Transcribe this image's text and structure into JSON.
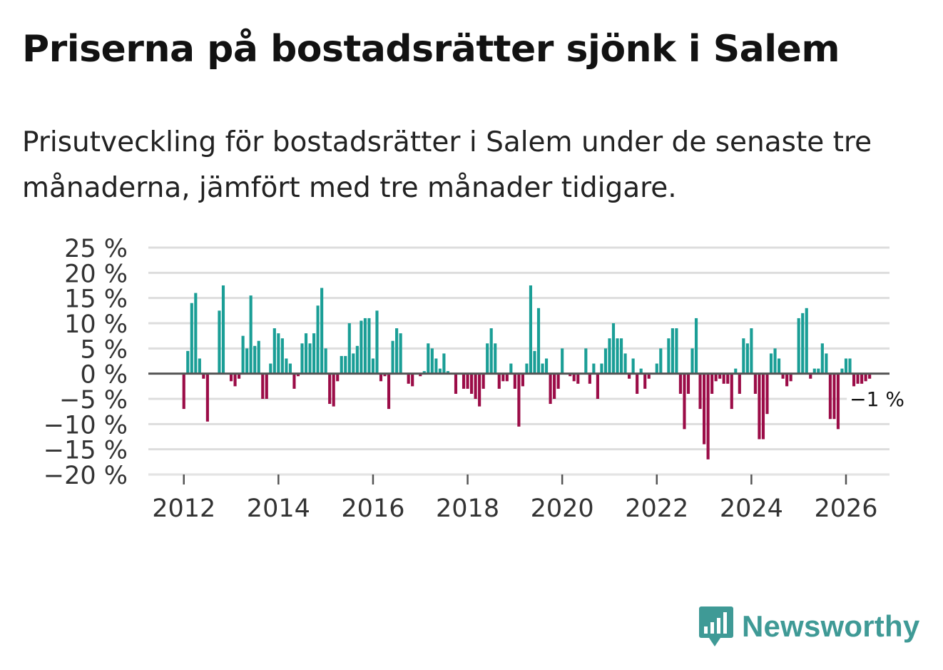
{
  "header": {
    "title": "Priserna på bostadsrätter sjönk i Salem",
    "subtitle": "Prisutveckling för bostadsrätter i Salem under de senaste tre månaderna, jämfört med tre månader tidigare."
  },
  "brand": {
    "name": "Newsworthy",
    "icon": "newsworthy-logo-icon",
    "color": "#3f9a96"
  },
  "colors": {
    "positive": "#1a9e96",
    "negative": "#9b0c47",
    "grid": "#dddddd",
    "zero_line": "#555555",
    "text": "#333333"
  },
  "chart_data": {
    "type": "bar",
    "title": "Priserna på bostadsrätter sjönk i Salem",
    "xlabel": "",
    "ylabel": "",
    "start": {
      "year": 2012,
      "month": 1
    },
    "ylim": [
      -20,
      25
    ],
    "xlim": [
      2011.25,
      2026.92
    ],
    "y_ticks": [
      {
        "value": 25,
        "label": "25 %"
      },
      {
        "value": 20,
        "label": "20 %"
      },
      {
        "value": 15,
        "label": "15 %"
      },
      {
        "value": 10,
        "label": "10 %"
      },
      {
        "value": 5,
        "label": "5 %"
      },
      {
        "value": 0,
        "label": "0 %"
      },
      {
        "value": -5,
        "label": "−5 %"
      },
      {
        "value": -10,
        "label": "−10 %"
      },
      {
        "value": -15,
        "label": "−15 %"
      },
      {
        "value": -20,
        "label": "−20 %"
      }
    ],
    "x_ticks": [
      {
        "value": 2012,
        "label": "2012"
      },
      {
        "value": 2014,
        "label": "2014"
      },
      {
        "value": 2016,
        "label": "2016"
      },
      {
        "value": 2018,
        "label": "2018"
      },
      {
        "value": 2020,
        "label": "2020"
      },
      {
        "value": 2022,
        "label": "2022"
      },
      {
        "value": 2024,
        "label": "2024"
      },
      {
        "value": 2026,
        "label": "2026"
      }
    ],
    "values": [
      -7,
      4.5,
      14,
      16,
      3,
      -1,
      -9.5,
      0,
      0,
      12.5,
      17.5,
      0,
      -1.5,
      -2.5,
      -1,
      7.5,
      5,
      15.5,
      5.5,
      6.5,
      -5,
      -5,
      2,
      9,
      8,
      7,
      3,
      2,
      -3,
      -0.5,
      6,
      8,
      6,
      8,
      13.5,
      17,
      5,
      -6,
      -6.5,
      -1.5,
      3.5,
      3.5,
      10,
      4,
      5.5,
      10.5,
      11,
      11,
      3,
      12.5,
      -1.5,
      -0.5,
      -7,
      6.5,
      9,
      8,
      0,
      -2,
      -2.5,
      0,
      -0.5,
      0.5,
      6,
      5,
      3,
      1,
      4,
      0.5,
      0,
      -4,
      0,
      -3,
      -3,
      -4,
      -5,
      -6.5,
      -3,
      6,
      9,
      6,
      -3,
      -1.5,
      -1.5,
      2,
      -3,
      -10.5,
      -2.5,
      2,
      17.5,
      4.5,
      13,
      2,
      3,
      -6,
      -5,
      -3,
      5,
      0,
      -0.5,
      -1.5,
      -2,
      0,
      5,
      -2,
      2,
      -5,
      2,
      5,
      7,
      10,
      7,
      7,
      4,
      -1,
      3,
      -4,
      1,
      -3,
      -1,
      0,
      2,
      5,
      0,
      7,
      9,
      9,
      -4,
      -11,
      -4,
      5,
      11,
      -7,
      -14,
      -17,
      -4,
      -1.5,
      -1,
      -2,
      -2,
      -7,
      1,
      -4,
      7,
      6,
      9,
      -4,
      -13,
      -13,
      -8,
      4,
      5,
      3,
      -1,
      -2.5,
      -1.5,
      0,
      11,
      12,
      13,
      -1,
      1,
      1,
      6,
      4,
      -9,
      -9,
      -11,
      1,
      3,
      3,
      -2.5,
      -2,
      -2,
      -1.5,
      -1
    ],
    "annotation": {
      "label": "−1 %",
      "index": 174
    }
  }
}
